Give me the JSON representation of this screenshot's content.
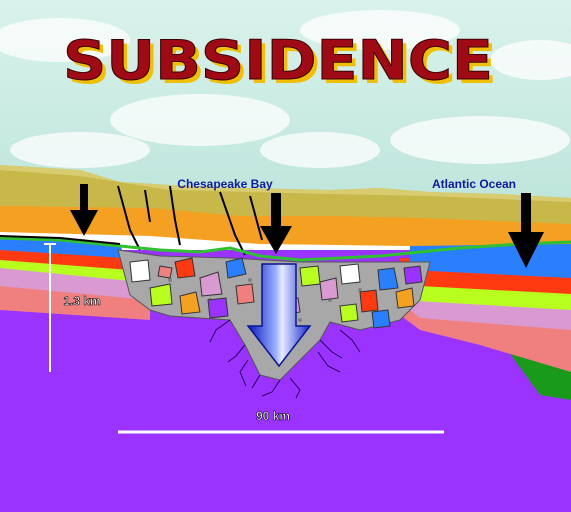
{
  "title": "SUBSIDENCE",
  "labels": {
    "bay": "Chesapeake Bay",
    "ocean": "Atlantic Ocean",
    "depth": "1.3 km",
    "width": "90 km"
  },
  "colors": {
    "title_fill": "#a00a14",
    "title_shadow": "#f0c000",
    "sky": "#c9ece4",
    "cloud": "#ffffff",
    "olive_layer": "#c8b84a",
    "orange_layer": "#f4a020",
    "blue_layer": "#2a7fff",
    "red_layer": "#ff3a10",
    "lime_layer": "#b8ff20",
    "pink_layer": "#d89ad0",
    "salmon_layer": "#f08080",
    "basement": "#9a33ff",
    "breccia": "#a8a8a8",
    "green_line": "#30c030",
    "arrow_black": "#000000",
    "arrow_blue": "#2040ff",
    "label_blue": "#101a9a",
    "scale_line": "#ffffff"
  },
  "icons": [
    "down-arrow-icon",
    "blue-subsidence-arrow-icon"
  ]
}
